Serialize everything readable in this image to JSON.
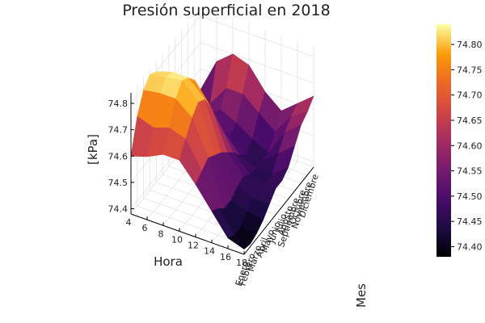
{
  "chart_data": {
    "type": "surface",
    "title": "Presión superficial en 2018",
    "xlabel": "Hora",
    "ylabel": "Mes",
    "zlabel": "[kPa]",
    "x_ticks": [
      4,
      6,
      8,
      10,
      12,
      14,
      16,
      18
    ],
    "xlim": [
      4,
      18
    ],
    "y_categories": [
      "Enero",
      "Febrero",
      "Marzo",
      "Abril",
      "Mayo",
      "Junio",
      "Julio",
      "Agosto",
      "Septiembre",
      "Octubre",
      "Noviembre",
      "Diciembre"
    ],
    "z_ticks": [
      74.4,
      74.5,
      74.6,
      74.7,
      74.8
    ],
    "zlim": [
      74.38,
      74.84
    ],
    "colorbar": {
      "ticks": [
        74.4,
        74.45,
        74.5,
        74.55,
        74.6,
        74.65,
        74.7,
        74.75,
        74.8
      ],
      "range": [
        74.38,
        74.84
      ],
      "colormap": "inferno"
    },
    "grid": true,
    "x": [
      4,
      6,
      8,
      10,
      12,
      14,
      16,
      18
    ],
    "z": [
      [
        74.6,
        74.72,
        74.79,
        74.82,
        74.8,
        74.72,
        74.62,
        74.6,
        74.55,
        74.55,
        74.45,
        74.52
      ],
      [
        74.62,
        74.7,
        74.8,
        74.83,
        74.82,
        74.78,
        74.6,
        74.55,
        74.52,
        74.5,
        74.52,
        74.65
      ],
      [
        74.65,
        74.72,
        74.8,
        74.84,
        74.82,
        74.78,
        74.65,
        74.55,
        74.5,
        74.55,
        74.6,
        74.7
      ],
      [
        74.65,
        74.7,
        74.75,
        74.78,
        74.76,
        74.7,
        74.62,
        74.55,
        74.5,
        74.52,
        74.6,
        74.68
      ],
      [
        74.58,
        74.6,
        74.62,
        74.6,
        74.58,
        74.55,
        74.52,
        74.48,
        74.45,
        74.48,
        74.55,
        74.6
      ],
      [
        74.5,
        74.48,
        74.45,
        74.45,
        74.47,
        74.48,
        74.46,
        74.45,
        74.45,
        74.45,
        74.5,
        74.55
      ],
      [
        74.42,
        74.4,
        74.4,
        74.43,
        74.45,
        74.45,
        74.45,
        74.45,
        74.5,
        74.55,
        74.58,
        74.6
      ],
      [
        74.4,
        74.39,
        74.4,
        74.42,
        74.45,
        74.48,
        74.48,
        74.5,
        74.55,
        74.6,
        74.62,
        74.65
      ]
    ]
  }
}
